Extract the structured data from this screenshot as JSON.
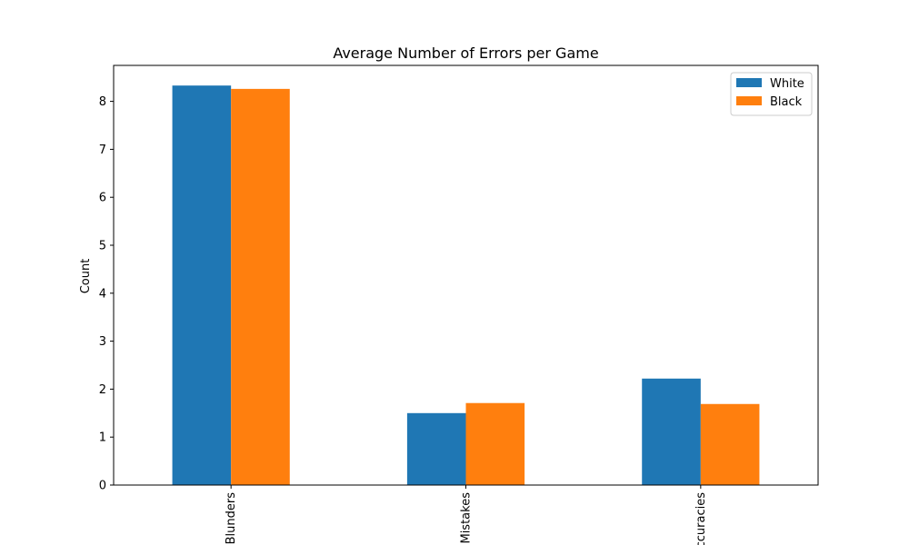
{
  "chart_data": {
    "type": "bar",
    "title": "Average Number of Errors per Game",
    "xlabel": "",
    "ylabel": "Count",
    "categories": [
      "Blunders",
      "Mistakes",
      "Inaccuracies"
    ],
    "series": [
      {
        "name": "White",
        "color": "#1f77b4",
        "values": [
          8.33,
          1.5,
          2.22
        ]
      },
      {
        "name": "Black",
        "color": "#ff7f0e",
        "values": [
          8.26,
          1.71,
          1.69
        ]
      }
    ],
    "ylim": [
      0,
      8.75
    ],
    "yticks": [
      0,
      1,
      2,
      3,
      4,
      5,
      6,
      7,
      8
    ],
    "grid": false,
    "legend_position": "top-right"
  }
}
